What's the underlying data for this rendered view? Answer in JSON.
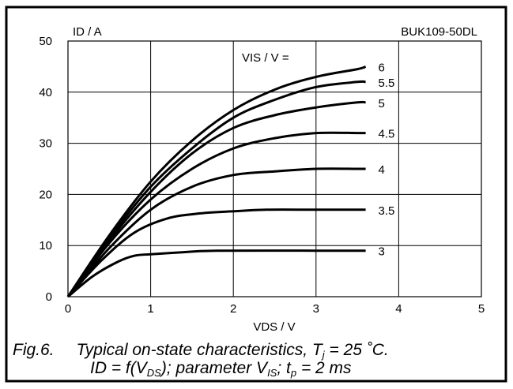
{
  "chart_data": {
    "type": "line",
    "part_number": "BUK109-50DL",
    "ylabel": "ID / A",
    "xlabel": "VDS / V",
    "legend_title": "VIS / V =",
    "xlim": [
      0,
      5
    ],
    "ylim": [
      0,
      50
    ],
    "x_ticks": [
      "0",
      "1",
      "2",
      "3",
      "4",
      "5"
    ],
    "y_ticks": [
      "0",
      "10",
      "20",
      "30",
      "40",
      "50"
    ],
    "grid": true,
    "series": [
      {
        "name": "6",
        "x": [
          0,
          0.5,
          1.0,
          1.5,
          2.0,
          2.5,
          3.0,
          3.5,
          3.6
        ],
        "y": [
          0,
          12,
          22.5,
          30.5,
          36.5,
          40.5,
          43,
          44.5,
          45
        ]
      },
      {
        "name": "5.5",
        "x": [
          0,
          0.5,
          1.0,
          1.5,
          2.0,
          2.5,
          3.0,
          3.5,
          3.6
        ],
        "y": [
          0,
          11.5,
          21.5,
          29,
          35,
          38.5,
          41,
          42,
          42
        ]
      },
      {
        "name": "5",
        "x": [
          0,
          0.5,
          1.0,
          1.5,
          2.0,
          2.5,
          3.0,
          3.5,
          3.6
        ],
        "y": [
          0,
          11,
          20.5,
          28,
          33,
          35.5,
          37,
          38,
          38
        ]
      },
      {
        "name": "4.5",
        "x": [
          0,
          0.5,
          1.0,
          1.5,
          2.0,
          2.5,
          3.0,
          3.5,
          3.6
        ],
        "y": [
          0,
          10.5,
          19,
          25,
          29,
          31,
          32,
          32,
          32
        ]
      },
      {
        "name": "4",
        "x": [
          0,
          0.5,
          1.0,
          1.5,
          2.0,
          2.5,
          3.0,
          3.5,
          3.6
        ],
        "y": [
          0,
          9.5,
          17,
          21.5,
          23.8,
          24.5,
          25,
          25,
          25
        ]
      },
      {
        "name": "3.5",
        "x": [
          0,
          0.4,
          0.8,
          1.2,
          1.6,
          2.0,
          2.4,
          3.0,
          3.6
        ],
        "y": [
          0,
          7,
          12.5,
          15.3,
          16.3,
          16.7,
          17,
          17,
          17
        ]
      },
      {
        "name": "3",
        "x": [
          0,
          0.3,
          0.6,
          0.8,
          1.0,
          1.4,
          1.8,
          3.0,
          3.6
        ],
        "y": [
          0,
          4,
          6.8,
          8,
          8.3,
          8.7,
          9,
          9,
          9
        ]
      }
    ]
  },
  "caption": {
    "fig_label": "Fig.6.",
    "line1_text": "Typical on-state characteristics, T",
    "line1_sub": "j",
    "line1_end": " = 25 ˚C.",
    "line2_a": "ID = f(V",
    "line2_sub1": "DS",
    "line2_b": "); parameter V",
    "line2_sub2": "IS",
    "line2_c": "; t",
    "line2_sub3": "p",
    "line2_d": " = 2 ms"
  }
}
